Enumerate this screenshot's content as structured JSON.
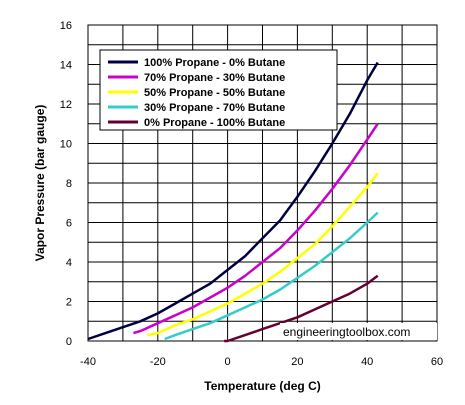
{
  "chart_data": {
    "type": "line",
    "title": "",
    "xlabel": "Temperature (deg C)",
    "ylabel": "Vapor Pressure (bar gauge)",
    "xlim": [
      -40,
      60
    ],
    "ylim": [
      0,
      16
    ],
    "xticks": [
      -40,
      -20,
      0,
      20,
      40,
      60
    ],
    "yticks": [
      0,
      2,
      4,
      6,
      8,
      10,
      12,
      14,
      16
    ],
    "grid": true,
    "legend_position": "top-left",
    "watermark": "engineeringtoolbox.com",
    "series": [
      {
        "name": "100% Propane - 0% Butane",
        "color": "#000040",
        "x": [
          -40,
          -35,
          -30,
          -25,
          -20,
          -15,
          -10,
          -5,
          0,
          5,
          10,
          15,
          20,
          25,
          30,
          35,
          40,
          43
        ],
        "y": [
          0.1,
          0.4,
          0.7,
          1.0,
          1.4,
          1.9,
          2.4,
          2.9,
          3.6,
          4.3,
          5.2,
          6.1,
          7.3,
          8.6,
          10.0,
          11.5,
          13.2,
          14.1
        ]
      },
      {
        "name": "70% Propane - 30% Butane",
        "color": "#cc00cc",
        "x": [
          -27,
          -25,
          -20,
          -15,
          -10,
          -5,
          0,
          5,
          10,
          15,
          20,
          25,
          30,
          35,
          40,
          43
        ],
        "y": [
          0.4,
          0.5,
          0.9,
          1.3,
          1.7,
          2.2,
          2.7,
          3.3,
          4.0,
          4.7,
          5.6,
          6.6,
          7.7,
          8.9,
          10.2,
          11.0
        ]
      },
      {
        "name": "50% Propane - 50% Butane",
        "color": "#ffff00",
        "x": [
          -23,
          -20,
          -15,
          -10,
          -5,
          0,
          5,
          10,
          15,
          20,
          25,
          30,
          35,
          40,
          43
        ],
        "y": [
          0.3,
          0.4,
          0.8,
          1.1,
          1.5,
          1.9,
          2.4,
          2.9,
          3.5,
          4.2,
          4.9,
          5.8,
          6.8,
          7.8,
          8.5
        ]
      },
      {
        "name": "30% Propane - 70% Butane",
        "color": "#33cccc",
        "x": [
          -18,
          -15,
          -10,
          -5,
          0,
          5,
          10,
          15,
          20,
          25,
          30,
          35,
          40,
          43
        ],
        "y": [
          0.1,
          0.3,
          0.6,
          0.9,
          1.3,
          1.7,
          2.1,
          2.6,
          3.2,
          3.8,
          4.5,
          5.2,
          6.0,
          6.5
        ]
      },
      {
        "name": "0% Propane - 100% Butane",
        "color": "#660033",
        "x": [
          -1,
          0,
          5,
          10,
          15,
          20,
          25,
          30,
          35,
          40,
          43
        ],
        "y": [
          0.0,
          0.0,
          0.3,
          0.6,
          0.9,
          1.2,
          1.6,
          2.0,
          2.4,
          2.9,
          3.3
        ]
      }
    ]
  }
}
